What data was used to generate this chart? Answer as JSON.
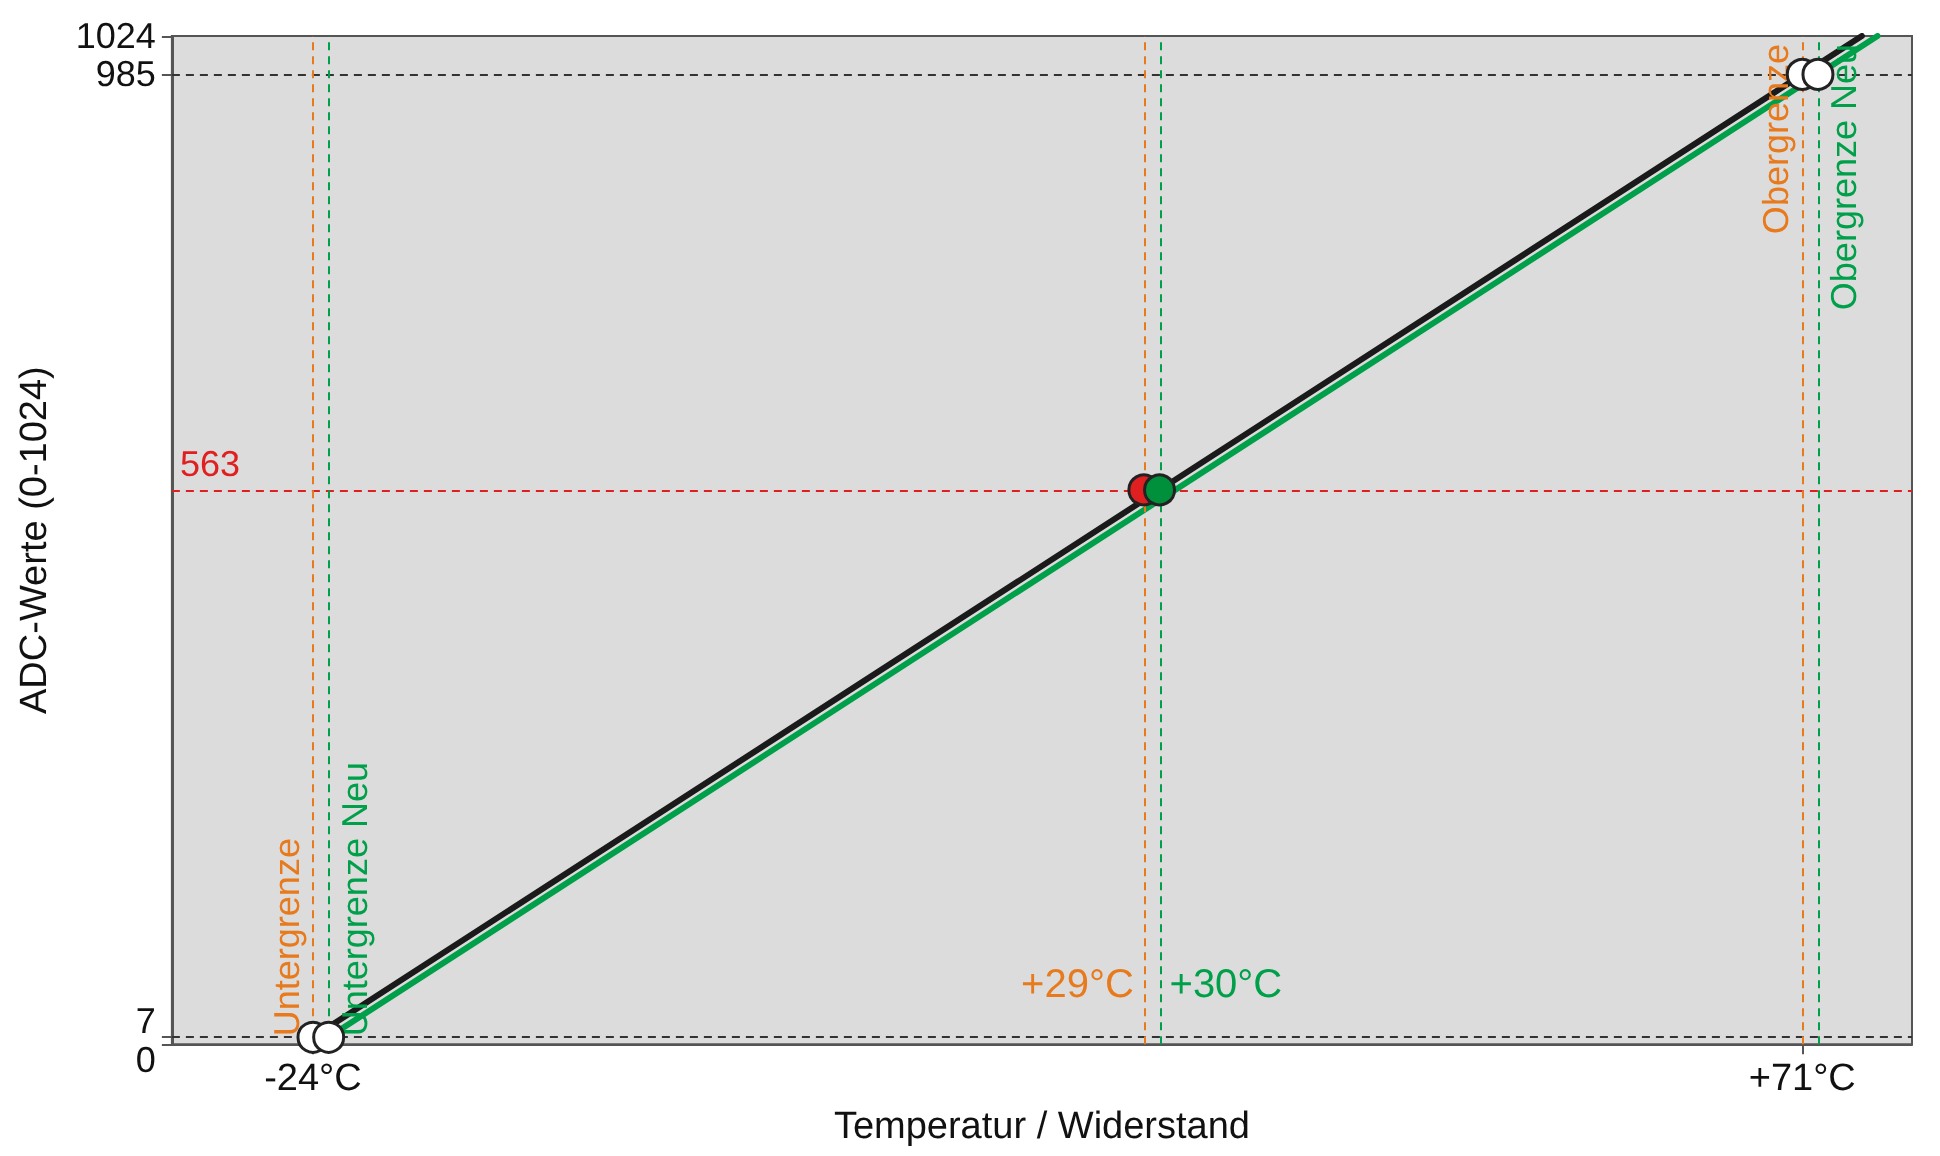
{
  "chart_data": {
    "type": "line",
    "xlabel": "Temperatur / Widerstand",
    "ylabel": "ADC-Werte (0-1024)",
    "xlim": [
      -33,
      78
    ],
    "xticks": [
      {
        "value": -24,
        "label": "-24°C"
      },
      {
        "value": 71,
        "label": "+71°C"
      }
    ],
    "ylim": [
      0,
      1024
    ],
    "yticks": [
      0,
      7,
      985,
      1024
    ],
    "grid": false,
    "series": [
      {
        "color": "#1a1a1a",
        "marker": "none",
        "x": [
          -24.7,
          74.8
        ],
        "values": [
          0,
          1024
        ]
      },
      {
        "color": "#00a04a",
        "marker": "none",
        "x": [
          -23.7,
          75.8
        ],
        "values": [
          0,
          1024
        ]
      },
      {
        "type": "scatter",
        "color": "#ffffff",
        "marker": "circle",
        "x": [
          -24,
          71,
          -23,
          72
        ],
        "values": [
          7,
          985,
          7,
          985
        ]
      },
      {
        "type": "scatter",
        "color": "#e02020",
        "marker": "circle",
        "x": [
          29
        ],
        "values": [
          563
        ]
      },
      {
        "type": "scatter",
        "color": "#00903c",
        "marker": "circle",
        "x": [
          30
        ],
        "values": [
          563
        ]
      }
    ],
    "ref_lines": [
      {
        "axis": "y",
        "value": 7,
        "color": "#333333",
        "line_style": "dashed"
      },
      {
        "axis": "y",
        "value": 985,
        "color": "#333333",
        "line_style": "dashed"
      },
      {
        "axis": "y",
        "value": 563,
        "label": "563",
        "color": "#e02020",
        "line_style": "dashed"
      },
      {
        "axis": "x",
        "value": -24,
        "label": "Untergrenze",
        "color": "#e87a1e",
        "line_style": "dashed"
      },
      {
        "axis": "x",
        "value": -23,
        "label": "Untergrenze Neu",
        "color": "#00a04a",
        "line_style": "dashed"
      },
      {
        "axis": "x",
        "value": 29,
        "color": "#e87a1e",
        "line_style": "dashed"
      },
      {
        "axis": "x",
        "value": 30,
        "color": "#00a04a",
        "line_style": "dashed"
      },
      {
        "axis": "x",
        "value": 71,
        "label": "Obergrenze",
        "color": "#e87a1e",
        "line_style": "dashed"
      },
      {
        "axis": "x",
        "value": 72,
        "label": "Obergrenze Neu",
        "color": "#00a04a",
        "line_style": "dashed"
      }
    ],
    "annotations": [
      {
        "text": "+29°C",
        "x": 29,
        "y": 60
      },
      {
        "text": "+30°C",
        "x": 30,
        "y": 60
      }
    ]
  }
}
